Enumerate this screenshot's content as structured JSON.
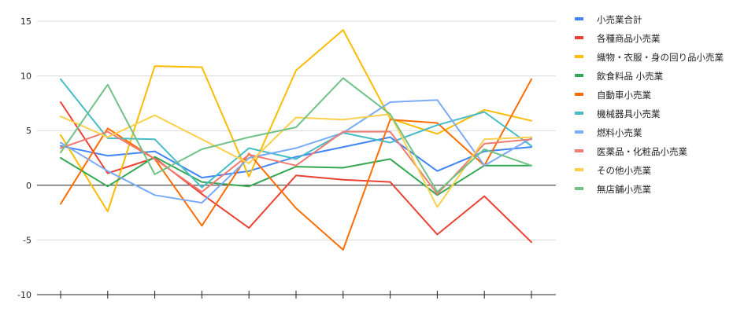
{
  "chart_data": {
    "type": "line",
    "title": "",
    "xlabel": "",
    "ylabel": "",
    "ylim": [
      -10,
      15
    ],
    "yticks": [
      -10,
      -5,
      0,
      5,
      10,
      15
    ],
    "grid": true,
    "legend_position": "right",
    "x": [
      1,
      2,
      3,
      4,
      5,
      6,
      7,
      8,
      9,
      10,
      11
    ],
    "series": [
      {
        "name": "小売業合計",
        "color": "#4285f4",
        "values": [
          3.6,
          2.7,
          3.1,
          0.7,
          1.3,
          2.6,
          3.5,
          4.4,
          1.3,
          3.1,
          3.5
        ]
      },
      {
        "name": "各種商品小売業",
        "color": "#ea4335",
        "values": [
          7.6,
          1.1,
          2.5,
          -0.8,
          -3.9,
          0.9,
          0.5,
          0.3,
          -4.5,
          -1.0,
          -5.2
        ]
      },
      {
        "name": "織物・衣服・身の回り品小売業",
        "color": "#fbbc04",
        "values": [
          4.6,
          -2.4,
          10.9,
          10.8,
          0.8,
          10.5,
          14.2,
          6.1,
          4.7,
          6.9,
          5.9
        ]
      },
      {
        "name": "飲食料品 小売業",
        "color": "#34a853",
        "values": [
          2.5,
          -0.1,
          2.6,
          0.3,
          -0.1,
          1.7,
          1.6,
          2.4,
          -0.9,
          1.8,
          1.8
        ]
      },
      {
        "name": "自動車小売業",
        "color": "#ff6d01",
        "values": [
          -1.7,
          5.2,
          2.4,
          -3.7,
          2.9,
          -2.1,
          -5.9,
          6.0,
          5.7,
          1.8,
          9.7
        ]
      },
      {
        "name": "機械器具小売業",
        "color": "#46bdc6",
        "values": [
          9.7,
          4.3,
          4.2,
          -0.2,
          3.4,
          2.4,
          4.8,
          3.9,
          5.5,
          6.7,
          3.6
        ]
      },
      {
        "name": "燃料小売業",
        "color": "#7baaf7",
        "values": [
          3.9,
          1.3,
          -0.9,
          -1.6,
          2.5,
          3.4,
          4.8,
          7.6,
          7.8,
          1.8,
          4.3
        ]
      },
      {
        "name": "医薬品・化粧品小売業",
        "color": "#f07b72",
        "values": [
          3.4,
          4.9,
          2.4,
          -0.6,
          2.8,
          1.8,
          4.9,
          4.9,
          -0.8,
          3.8,
          4.2
        ]
      },
      {
        "name": "その他小売業",
        "color": "#fcd04f",
        "values": [
          6.3,
          4.4,
          6.4,
          4.2,
          2.0,
          6.2,
          6.0,
          6.5,
          -2.0,
          4.2,
          4.4
        ]
      },
      {
        "name": "無店舗小売業",
        "color": "#71c287",
        "values": [
          3.0,
          9.2,
          1.0,
          3.3,
          4.4,
          5.3,
          9.8,
          6.5,
          -0.6,
          3.3,
          1.8
        ]
      }
    ]
  }
}
